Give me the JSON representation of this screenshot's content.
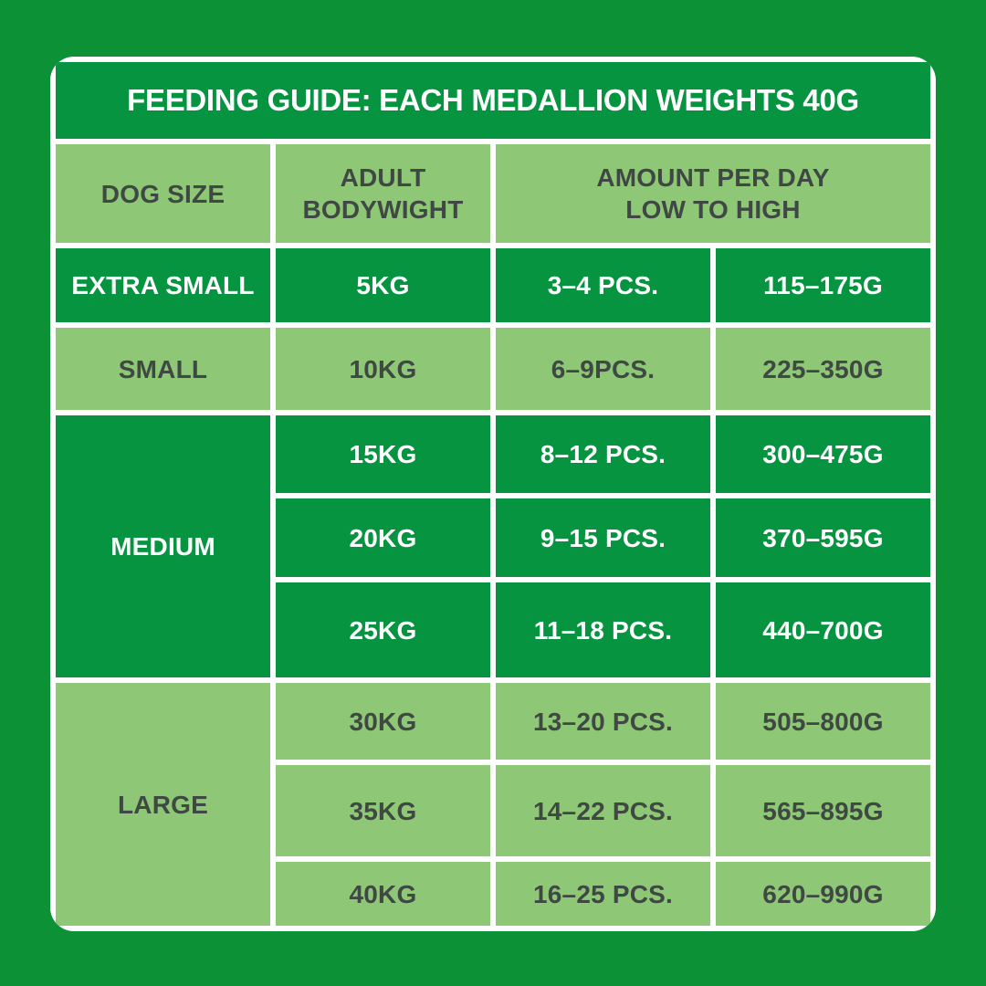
{
  "colors": {
    "page_background": "#0c9137",
    "dark_green_cell": "#079441",
    "light_green_cell": "#8ec876",
    "border_white": "#ffffff",
    "text_on_dark": "#ffffff",
    "text_on_light": "#3f4843"
  },
  "table": {
    "title": "FEEDING GUIDE: EACH MEDALLION WEIGHTS 40G",
    "headers": {
      "dog_size": "DOG SIZE",
      "adult_line1": "ADULT",
      "adult_line2": "BODYWIGHT",
      "amount_line1": "AMOUNT PER DAY",
      "amount_line2": "LOW TO HIGH"
    },
    "size_groups": [
      {
        "label": "EXTRA SMALL",
        "shade": "dark",
        "rows": [
          {
            "weight": "5KG",
            "pieces": "3–4 PCS.",
            "grams": "115–175G"
          }
        ]
      },
      {
        "label": "SMALL",
        "shade": "light",
        "rows": [
          {
            "weight": "10KG",
            "pieces": "6–9PCS.",
            "grams": "225–350G"
          }
        ]
      },
      {
        "label": "MEDIUM",
        "shade": "dark",
        "rows": [
          {
            "weight": "15KG",
            "pieces": "8–12 PCS.",
            "grams": "300–475G"
          },
          {
            "weight": "20KG",
            "pieces": "9–15 PCS.",
            "grams": "370–595G"
          },
          {
            "weight": "25KG",
            "pieces": "11–18 PCS.",
            "grams": "440–700G"
          }
        ]
      },
      {
        "label": "LARGE",
        "shade": "light",
        "rows": [
          {
            "weight": "30KG",
            "pieces": "13–20 PCS.",
            "grams": "505–800G"
          },
          {
            "weight": "35KG",
            "pieces": "14–22 PCS.",
            "grams": "565–895G"
          },
          {
            "weight": "40KG",
            "pieces": "16–25 PCS.",
            "grams": "620–990G"
          }
        ]
      }
    ]
  },
  "chart_data": {
    "type": "table",
    "title": "FEEDING GUIDE: EACH MEDALLION WEIGHTS 40G",
    "columns": [
      "DOG SIZE",
      "ADULT BODYWIGHT",
      "AMOUNT PER DAY LOW TO HIGH (PCS.)",
      "AMOUNT PER DAY LOW TO HIGH (GRAMS)"
    ],
    "rows": [
      [
        "EXTRA SMALL",
        "5KG",
        "3–4 PCS.",
        "115–175G"
      ],
      [
        "SMALL",
        "10KG",
        "6–9PCS.",
        "225–350G"
      ],
      [
        "MEDIUM",
        "15KG",
        "8–12 PCS.",
        "300–475G"
      ],
      [
        "MEDIUM",
        "20KG",
        "9–15 PCS.",
        "370–595G"
      ],
      [
        "MEDIUM",
        "25KG",
        "11–18 PCS.",
        "440–700G"
      ],
      [
        "LARGE",
        "30KG",
        "13–20 PCS.",
        "505–800G"
      ],
      [
        "LARGE",
        "35KG",
        "14–22 PCS.",
        "565–895G"
      ],
      [
        "LARGE",
        "40KG",
        "16–25 PCS.",
        "620–990G"
      ]
    ],
    "medallion_weight_g": 40
  }
}
